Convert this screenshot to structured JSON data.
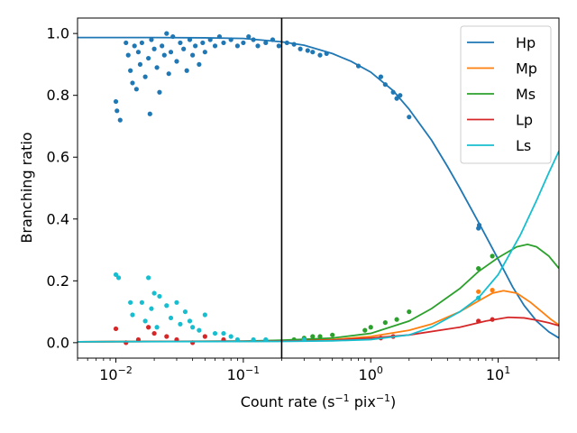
{
  "chart_data": {
    "type": "scatter",
    "title": "",
    "xlabel": "Count rate (s",
    "xlabel_sup1": "−1",
    "xlabel_mid": " pix",
    "xlabel_sup2": "−1",
    "xlabel_end": ")",
    "ylabel": "Branching ratio",
    "xscale": "log",
    "xlim": [
      0.005,
      30
    ],
    "ylim": [
      -0.05,
      1.05
    ],
    "yticks": [
      0.0,
      0.2,
      0.4,
      0.6,
      0.8,
      1.0
    ],
    "ytick_labels": [
      "0.0",
      "0.2",
      "0.4",
      "0.6",
      "0.8",
      "1.0"
    ],
    "xticks": [
      {
        "value": 0.01,
        "base": "10",
        "exp": "−2"
      },
      {
        "value": 0.1,
        "base": "10",
        "exp": "−1"
      },
      {
        "value": 1,
        "base": "10",
        "exp": "0"
      },
      {
        "value": 10,
        "base": "10",
        "exp": "1"
      }
    ],
    "vline_x": 0.2,
    "legend_position": "top-right",
    "series": [
      {
        "name": "Hp",
        "color": "#1f77b4",
        "curve": [
          [
            0.005,
            0.987
          ],
          [
            0.02,
            0.987
          ],
          [
            0.05,
            0.986
          ],
          [
            0.1,
            0.984
          ],
          [
            0.2,
            0.973
          ],
          [
            0.3,
            0.962
          ],
          [
            0.5,
            0.935
          ],
          [
            0.7,
            0.91
          ],
          [
            1,
            0.875
          ],
          [
            1.5,
            0.815
          ],
          [
            2,
            0.755
          ],
          [
            3,
            0.655
          ],
          [
            4,
            0.57
          ],
          [
            5,
            0.5
          ],
          [
            7,
            0.39
          ],
          [
            10,
            0.27
          ],
          [
            13,
            0.18
          ],
          [
            16,
            0.12
          ],
          [
            20,
            0.07
          ],
          [
            25,
            0.035
          ],
          [
            30,
            0.015
          ]
        ],
        "points": [
          [
            0.01,
            0.78
          ],
          [
            0.0102,
            0.75
          ],
          [
            0.0108,
            0.72
          ],
          [
            0.012,
            0.97
          ],
          [
            0.0125,
            0.93
          ],
          [
            0.013,
            0.88
          ],
          [
            0.0135,
            0.84
          ],
          [
            0.014,
            0.96
          ],
          [
            0.0145,
            0.82
          ],
          [
            0.015,
            0.94
          ],
          [
            0.0155,
            0.9
          ],
          [
            0.016,
            0.97
          ],
          [
            0.017,
            0.86
          ],
          [
            0.018,
            0.92
          ],
          [
            0.0185,
            0.74
          ],
          [
            0.019,
            0.98
          ],
          [
            0.02,
            0.95
          ],
          [
            0.021,
            0.89
          ],
          [
            0.022,
            0.81
          ],
          [
            0.023,
            0.96
          ],
          [
            0.024,
            0.93
          ],
          [
            0.025,
            1.0
          ],
          [
            0.026,
            0.87
          ],
          [
            0.027,
            0.94
          ],
          [
            0.028,
            0.99
          ],
          [
            0.03,
            0.91
          ],
          [
            0.032,
            0.97
          ],
          [
            0.034,
            0.95
          ],
          [
            0.036,
            0.88
          ],
          [
            0.038,
            0.98
          ],
          [
            0.04,
            0.93
          ],
          [
            0.042,
            0.96
          ],
          [
            0.045,
            0.9
          ],
          [
            0.048,
            0.97
          ],
          [
            0.05,
            0.94
          ],
          [
            0.055,
            0.98
          ],
          [
            0.06,
            0.96
          ],
          [
            0.065,
            0.99
          ],
          [
            0.07,
            0.97
          ],
          [
            0.08,
            0.98
          ],
          [
            0.09,
            0.96
          ],
          [
            0.1,
            0.97
          ],
          [
            0.11,
            0.99
          ],
          [
            0.12,
            0.98
          ],
          [
            0.13,
            0.96
          ],
          [
            0.15,
            0.97
          ],
          [
            0.17,
            0.98
          ],
          [
            0.19,
            0.96
          ],
          [
            0.22,
            0.97
          ],
          [
            0.25,
            0.965
          ],
          [
            0.28,
            0.95
          ],
          [
            0.32,
            0.945
          ],
          [
            0.35,
            0.94
          ],
          [
            0.4,
            0.93
          ],
          [
            0.45,
            0.935
          ],
          [
            0.8,
            0.895
          ],
          [
            1.2,
            0.86
          ],
          [
            1.3,
            0.835
          ],
          [
            1.5,
            0.81
          ],
          [
            1.6,
            0.79
          ],
          [
            1.7,
            0.8
          ],
          [
            2.0,
            0.73
          ],
          [
            7,
            0.37
          ],
          [
            7.1,
            0.38
          ]
        ]
      },
      {
        "name": "Mp",
        "color": "#ff7f0e",
        "curve": [
          [
            0.005,
            0.003
          ],
          [
            0.1,
            0.004
          ],
          [
            0.2,
            0.006
          ],
          [
            0.5,
            0.01
          ],
          [
            1,
            0.02
          ],
          [
            2,
            0.04
          ],
          [
            3,
            0.06
          ],
          [
            5,
            0.1
          ],
          [
            7,
            0.135
          ],
          [
            9,
            0.16
          ],
          [
            11,
            0.168
          ],
          [
            14,
            0.16
          ],
          [
            18,
            0.13
          ],
          [
            22,
            0.1
          ],
          [
            26,
            0.075
          ],
          [
            30,
            0.057
          ]
        ],
        "points": [
          [
            7,
            0.165
          ],
          [
            9,
            0.17
          ]
        ]
      },
      {
        "name": "Ms",
        "color": "#2ca02c",
        "curve": [
          [
            0.005,
            0.003
          ],
          [
            0.1,
            0.005
          ],
          [
            0.2,
            0.008
          ],
          [
            0.5,
            0.015
          ],
          [
            1,
            0.03
          ],
          [
            2,
            0.07
          ],
          [
            3,
            0.11
          ],
          [
            5,
            0.175
          ],
          [
            7,
            0.23
          ],
          [
            10,
            0.275
          ],
          [
            14,
            0.31
          ],
          [
            17,
            0.318
          ],
          [
            20,
            0.31
          ],
          [
            25,
            0.28
          ],
          [
            30,
            0.24
          ]
        ],
        "points": [
          [
            0.25,
            0.01
          ],
          [
            0.3,
            0.015
          ],
          [
            0.35,
            0.02
          ],
          [
            0.4,
            0.02
          ],
          [
            0.5,
            0.025
          ],
          [
            0.9,
            0.04
          ],
          [
            1.0,
            0.05
          ],
          [
            1.3,
            0.065
          ],
          [
            1.6,
            0.075
          ],
          [
            2.0,
            0.1
          ],
          [
            7,
            0.24
          ],
          [
            9,
            0.28
          ]
        ]
      },
      {
        "name": "Lp",
        "color": "#d62728",
        "curve": [
          [
            0.005,
            0.003
          ],
          [
            0.2,
            0.005
          ],
          [
            0.5,
            0.008
          ],
          [
            1,
            0.015
          ],
          [
            2,
            0.025
          ],
          [
            5,
            0.05
          ],
          [
            8,
            0.07
          ],
          [
            12,
            0.082
          ],
          [
            16,
            0.08
          ],
          [
            20,
            0.073
          ],
          [
            25,
            0.064
          ],
          [
            30,
            0.055
          ]
        ],
        "points": [
          [
            0.01,
            0.045
          ],
          [
            0.012,
            0.0
          ],
          [
            0.015,
            0.01
          ],
          [
            0.018,
            0.05
          ],
          [
            0.02,
            0.03
          ],
          [
            0.025,
            0.02
          ],
          [
            0.03,
            0.01
          ],
          [
            0.04,
            0.0
          ],
          [
            0.05,
            0.02
          ],
          [
            0.07,
            0.01
          ],
          [
            1.2,
            0.015
          ],
          [
            1.5,
            0.02
          ],
          [
            7,
            0.07
          ],
          [
            9,
            0.075
          ]
        ]
      },
      {
        "name": "Ls",
        "color": "#17becf",
        "curve": [
          [
            0.005,
            0.003
          ],
          [
            0.2,
            0.004
          ],
          [
            0.5,
            0.006
          ],
          [
            1,
            0.01
          ],
          [
            2,
            0.025
          ],
          [
            3,
            0.05
          ],
          [
            5,
            0.1
          ],
          [
            7,
            0.145
          ],
          [
            10,
            0.22
          ],
          [
            15,
            0.35
          ],
          [
            20,
            0.46
          ],
          [
            25,
            0.55
          ],
          [
            30,
            0.62
          ]
        ],
        "points": [
          [
            0.01,
            0.22
          ],
          [
            0.0105,
            0.21
          ],
          [
            0.013,
            0.13
          ],
          [
            0.0135,
            0.09
          ],
          [
            0.016,
            0.13
          ],
          [
            0.017,
            0.07
          ],
          [
            0.018,
            0.21
          ],
          [
            0.019,
            0.11
          ],
          [
            0.02,
            0.16
          ],
          [
            0.022,
            0.15
          ],
          [
            0.021,
            0.05
          ],
          [
            0.025,
            0.12
          ],
          [
            0.027,
            0.08
          ],
          [
            0.03,
            0.13
          ],
          [
            0.032,
            0.06
          ],
          [
            0.035,
            0.1
          ],
          [
            0.038,
            0.07
          ],
          [
            0.04,
            0.05
          ],
          [
            0.045,
            0.04
          ],
          [
            0.05,
            0.09
          ],
          [
            0.06,
            0.03
          ],
          [
            0.07,
            0.03
          ],
          [
            0.08,
            0.02
          ],
          [
            0.09,
            0.01
          ],
          [
            0.12,
            0.01
          ],
          [
            0.15,
            0.01
          ],
          [
            0.3,
            0.01
          ],
          [
            7,
            0.145
          ]
        ]
      }
    ]
  }
}
